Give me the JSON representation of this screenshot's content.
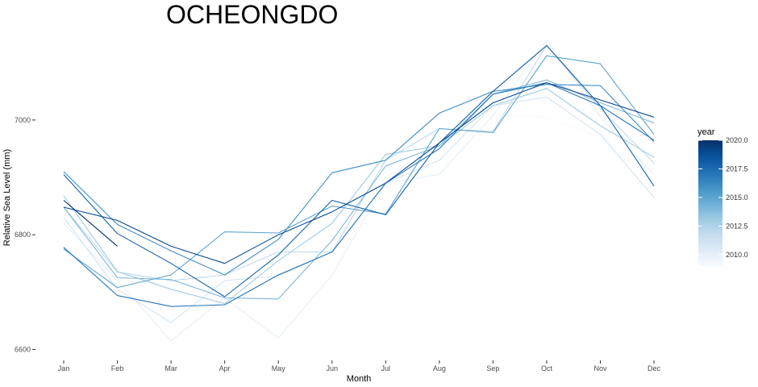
{
  "chart_data": {
    "type": "line",
    "title": "OCHEONGDO",
    "xlabel": "Month",
    "ylabel": "Relative Sea Level (mm)",
    "categories": [
      "Jan",
      "Feb",
      "Mar",
      "Apr",
      "May",
      "Jun",
      "Jul",
      "Aug",
      "Sep",
      "Oct",
      "Nov",
      "Dec"
    ],
    "ylim": [
      6588,
      7153
    ],
    "yticks": [
      6600,
      6800,
      7000
    ],
    "ytick_labels": [
      "6600",
      "6800",
      "7000"
    ],
    "grid": false,
    "legend": {
      "title": "year",
      "position": "right",
      "range": [
        2009,
        2020
      ],
      "ticks": [
        2010.0,
        2012.5,
        2015.0,
        2017.5,
        2020.0
      ],
      "tick_labels": [
        "2010.0",
        "2012.5",
        "2015.0",
        "2017.5",
        "2020.0"
      ],
      "colors": [
        "#f7fbff",
        "#deebf7",
        "#c6dbef",
        "#9ecae1",
        "#6baed6",
        "#4292c6",
        "#2171b5",
        "#08519c",
        "#08306b"
      ]
    },
    "series": [
      {
        "year": 2009,
        "values": [
          6835,
          6720,
          6710,
          6710,
          6740,
          6820,
          6900,
          6960,
          7010,
          7005,
          6970,
          6890
        ]
      },
      {
        "year": 2010,
        "values": [
          6820,
          6720,
          6615,
          6690,
          6620,
          6730,
          6890,
          6905,
          7008,
          7140,
          7005,
          6905
        ]
      },
      {
        "year": 2011,
        "values": [
          6830,
          6705,
          6647,
          6720,
          6728,
          6770,
          6890,
          6930,
          7025,
          7040,
          6975,
          6865
        ]
      },
      {
        "year": 2012,
        "values": [
          6848,
          6735,
          6720,
          6730,
          6770,
          6770,
          6930,
          6985,
          6980,
          7130,
          7020,
          6925
        ]
      },
      {
        "year": 2013,
        "values": [
          6868,
          6736,
          6705,
          6680,
          6755,
          6820,
          6940,
          6955,
          7025,
          7055,
          6990,
          6935
        ]
      },
      {
        "year": 2014,
        "values": [
          6848,
          6725,
          6722,
          6690,
          6688,
          6790,
          6920,
          6955,
          7045,
          7070,
          7030,
          6995
        ]
      },
      {
        "year": 2015,
        "values": [
          6775,
          6708,
          6730,
          6805,
          6803,
          6850,
          6836,
          6985,
          6978,
          7112,
          7098,
          6975
        ]
      },
      {
        "year": 2016,
        "values": [
          6910,
          6818,
          6772,
          6730,
          6792,
          6908,
          6930,
          7012,
          7050,
          7062,
          7060,
          6962
        ]
      },
      {
        "year": 2017,
        "values": [
          6778,
          6694,
          6675,
          6678,
          6730,
          6770,
          6890,
          6950,
          7045,
          7065,
          7025,
          6965
        ]
      },
      {
        "year": 2018,
        "values": [
          6905,
          6802,
          6750,
          6692,
          6765,
          6860,
          6835,
          6960,
          7050,
          7130,
          7025,
          6885
        ]
      },
      {
        "year": 2019,
        "values": [
          6848,
          6825,
          6780,
          6750,
          6800,
          6840,
          6890,
          6960,
          7030,
          7065,
          7035,
          7005
        ]
      },
      {
        "year": 2020,
        "values": [
          6860,
          6780,
          null,
          null,
          null,
          null,
          null,
          null,
          null,
          null,
          null,
          null
        ]
      }
    ]
  }
}
